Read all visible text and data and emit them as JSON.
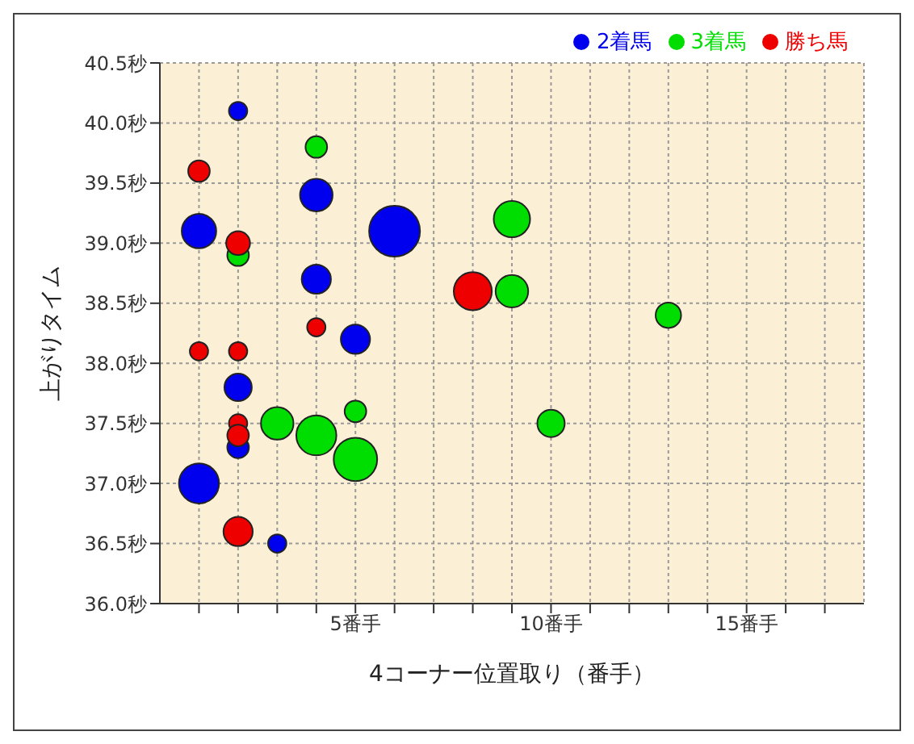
{
  "chart_data": {
    "type": "bubble",
    "xlabel": "4コーナー位置取り（番手）",
    "ylabel": "上がりタイム",
    "legend": "top right",
    "grid": true,
    "xlim": [
      0,
      18
    ],
    "xticks": [
      {
        "value": 1,
        "label": null
      },
      {
        "value": 2,
        "label": null
      },
      {
        "value": 3,
        "label": null
      },
      {
        "value": 4,
        "label": null
      },
      {
        "value": 5,
        "label": "5番手"
      },
      {
        "value": 6,
        "label": null
      },
      {
        "value": 7,
        "label": null
      },
      {
        "value": 8,
        "label": null
      },
      {
        "value": 9,
        "label": null
      },
      {
        "value": 10,
        "label": "10番手"
      },
      {
        "value": 11,
        "label": null
      },
      {
        "value": 12,
        "label": null
      },
      {
        "value": 13,
        "label": null
      },
      {
        "value": 14,
        "label": null
      },
      {
        "value": 15,
        "label": "15番手"
      },
      {
        "value": 16,
        "label": null
      },
      {
        "value": 17,
        "label": null
      }
    ],
    "ylim": [
      36.0,
      40.5
    ],
    "yticks": [
      {
        "value": 36.0,
        "label": "36.0秒"
      },
      {
        "value": 36.5,
        "label": "36.5秒"
      },
      {
        "value": 37.0,
        "label": "37.0秒"
      },
      {
        "value": 37.5,
        "label": "37.5秒"
      },
      {
        "value": 38.0,
        "label": "38.0秒"
      },
      {
        "value": 38.5,
        "label": "38.5秒"
      },
      {
        "value": 39.0,
        "label": "39.0秒"
      },
      {
        "value": 39.5,
        "label": "39.5秒"
      },
      {
        "value": 40.0,
        "label": "40.0秒"
      },
      {
        "value": 40.5,
        "label": "40.5秒"
      }
    ],
    "series": [
      {
        "name": "3着馬",
        "color": "#00dd00",
        "x": [
          4,
          2,
          9,
          9,
          13,
          3,
          4,
          5,
          5,
          10
        ],
        "values": [
          39.8,
          38.9,
          39.2,
          38.6,
          38.4,
          37.5,
          37.4,
          37.6,
          37.2,
          37.5
        ],
        "sizes": [
          0.18,
          0.18,
          0.51,
          0.41,
          0.25,
          0.41,
          0.62,
          0.18,
          0.73,
          0.29
        ]
      },
      {
        "name": "2着馬",
        "color": "#0000ee",
        "x": [
          2,
          4,
          1,
          6,
          4,
          5,
          2,
          2,
          1,
          3
        ],
        "values": [
          40.1,
          39.4,
          39.1,
          39.1,
          38.7,
          38.2,
          37.8,
          37.3,
          37.0,
          36.5
        ],
        "sizes": [
          0.13,
          0.41,
          0.46,
          1,
          0.33,
          0.33,
          0.29,
          0.18,
          0.62,
          0.13
        ]
      },
      {
        "name": "勝ち馬",
        "color": "#ee0000",
        "x": [
          1,
          2,
          8,
          4,
          1,
          2,
          2,
          2,
          2
        ],
        "values": [
          39.6,
          39.0,
          38.6,
          38.3,
          38.1,
          38.1,
          37.5,
          37.4,
          36.6
        ],
        "sizes": [
          0.18,
          0.22,
          0.56,
          0.13,
          0.13,
          0.13,
          0.13,
          0.18,
          0.33
        ]
      }
    ]
  }
}
